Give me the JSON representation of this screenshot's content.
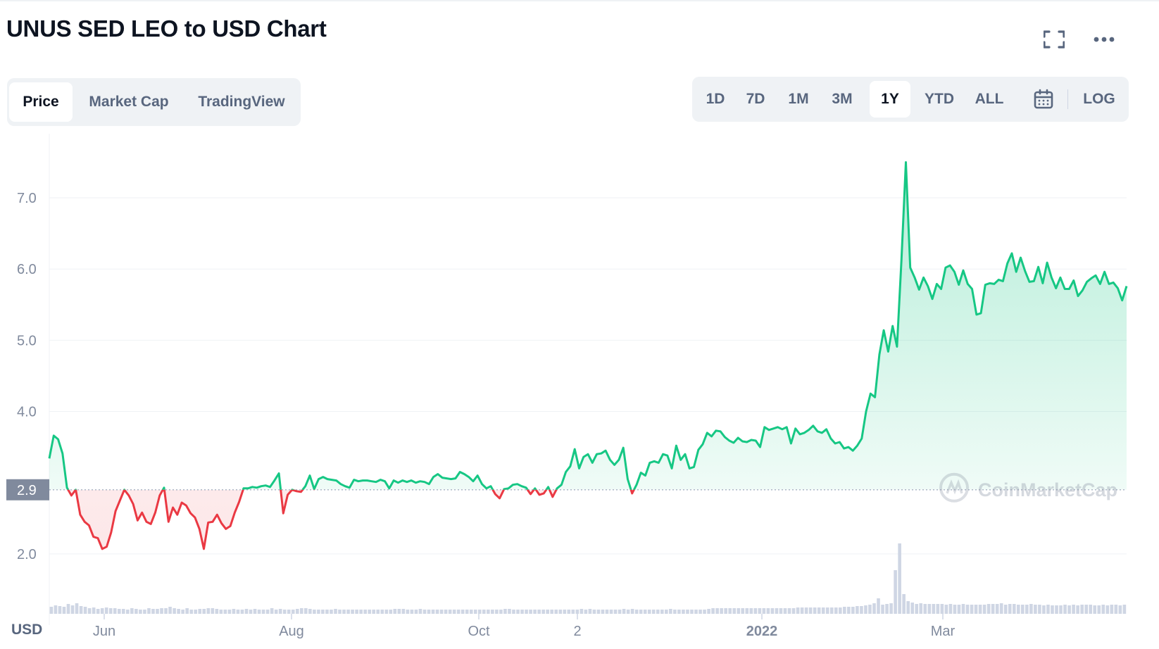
{
  "header": {
    "title": "UNUS SED LEO to USD Chart"
  },
  "icons": {
    "fullscreen": "fullscreen-icon",
    "more": "more-horizontal-icon",
    "calendar": "calendar-icon"
  },
  "tabs": [
    {
      "label": "Price",
      "active": true
    },
    {
      "label": "Market Cap",
      "active": false
    },
    {
      "label": "TradingView",
      "active": false
    }
  ],
  "ranges": [
    {
      "label": "1D",
      "active": false
    },
    {
      "label": "7D",
      "active": false
    },
    {
      "label": "1M",
      "active": false
    },
    {
      "label": "3M",
      "active": false
    },
    {
      "label": "1Y",
      "active": true
    },
    {
      "label": "YTD",
      "active": false
    },
    {
      "label": "ALL",
      "active": false
    }
  ],
  "log_label": "LOG",
  "currency_label": "USD",
  "watermark": "CoinMarketCap",
  "colors": {
    "up": "#16c784",
    "down": "#ea3943",
    "axis_text": "#808a9d",
    "grid": "#eff2f5",
    "badge": "#808a9d"
  },
  "chart_data": {
    "type": "line",
    "xlabel": "",
    "ylabel": "",
    "x_ticks": [
      "Jun",
      "Aug",
      "Oct",
      "2",
      "2022",
      "Mar"
    ],
    "y_ticks": [
      2.0,
      4.0,
      5.0,
      6.0,
      7.0
    ],
    "ylim": [
      1.0,
      7.9
    ],
    "current_price_label": "2.9",
    "baseline": 2.9,
    "grid": true,
    "series": [
      {
        "values": [
          3.34,
          3.66,
          3.61,
          3.41,
          2.93,
          2.82,
          2.9,
          2.55,
          2.45,
          2.4,
          2.24,
          2.22,
          2.07,
          2.1,
          2.3,
          2.6,
          2.75,
          2.9,
          2.82,
          2.7,
          2.47,
          2.58,
          2.45,
          2.42,
          2.58,
          2.82,
          2.93,
          2.45,
          2.65,
          2.55,
          2.72,
          2.68,
          2.57,
          2.51,
          2.35,
          2.07,
          2.44,
          2.45,
          2.55,
          2.43,
          2.35,
          2.39,
          2.58,
          2.73,
          2.92,
          2.92,
          2.94,
          2.93,
          2.95,
          2.96,
          2.94,
          3.03,
          3.13,
          2.57,
          2.83,
          2.9,
          2.88,
          2.87,
          2.95,
          3.1,
          2.91,
          3.05,
          3.08,
          3.05,
          3.04,
          3.03,
          2.98,
          2.95,
          2.93,
          3.04,
          3.02,
          3.03,
          3.03,
          3.02,
          3.01,
          3.04,
          3.02,
          2.92,
          3.03,
          3.0,
          3.03,
          3.01,
          3.03,
          3.0,
          3.02,
          3.01,
          2.98,
          3.08,
          3.12,
          3.07,
          3.06,
          3.05,
          3.06,
          3.15,
          3.12,
          3.08,
          3.02,
          3.1,
          2.98,
          2.92,
          2.95,
          2.84,
          2.78,
          2.91,
          2.92,
          2.97,
          2.98,
          2.95,
          2.93,
          2.84,
          2.92,
          2.83,
          2.85,
          2.94,
          2.8,
          2.92,
          2.97,
          3.15,
          3.23,
          3.47,
          3.2,
          3.36,
          3.4,
          3.28,
          3.4,
          3.41,
          3.45,
          3.32,
          3.25,
          3.32,
          3.49,
          3.05,
          2.85,
          2.97,
          3.14,
          3.1,
          3.28,
          3.3,
          3.28,
          3.4,
          3.38,
          3.2,
          3.52,
          3.32,
          3.4,
          3.2,
          3.22,
          3.46,
          3.54,
          3.7,
          3.65,
          3.73,
          3.72,
          3.64,
          3.59,
          3.56,
          3.63,
          3.58,
          3.57,
          3.6,
          3.59,
          3.5,
          3.78,
          3.74,
          3.76,
          3.78,
          3.75,
          3.78,
          3.55,
          3.76,
          3.68,
          3.7,
          3.74,
          3.8,
          3.72,
          3.7,
          3.75,
          3.62,
          3.55,
          3.57,
          3.48,
          3.5,
          3.45,
          3.52,
          3.62,
          4.0,
          4.25,
          4.2,
          4.8,
          5.14,
          4.84,
          5.2,
          4.91,
          6.12,
          7.5,
          6.02,
          5.88,
          5.71,
          5.88,
          5.76,
          5.58,
          5.79,
          5.72,
          6.02,
          6.05,
          5.96,
          5.78,
          5.98,
          5.79,
          5.72,
          5.36,
          5.38,
          5.78,
          5.8,
          5.79,
          5.85,
          5.83,
          6.08,
          6.22,
          5.96,
          6.16,
          5.97,
          5.82,
          5.83,
          6.03,
          5.8,
          6.09,
          5.88,
          5.73,
          5.88,
          5.72,
          5.72,
          5.84,
          5.62,
          5.7,
          5.82,
          5.87,
          5.91,
          5.79,
          5.96,
          5.79,
          5.81,
          5.73,
          5.56,
          5.76
        ]
      }
    ],
    "volume": [
      0.1,
      0.12,
      0.11,
      0.1,
      0.14,
      0.12,
      0.15,
      0.11,
      0.1,
      0.08,
      0.09,
      0.07,
      0.08,
      0.09,
      0.08,
      0.08,
      0.07,
      0.07,
      0.06,
      0.08,
      0.07,
      0.06,
      0.06,
      0.08,
      0.07,
      0.07,
      0.08,
      0.08,
      0.1,
      0.08,
      0.07,
      0.06,
      0.08,
      0.06,
      0.06,
      0.07,
      0.07,
      0.08,
      0.08,
      0.07,
      0.06,
      0.06,
      0.06,
      0.07,
      0.06,
      0.06,
      0.07,
      0.06,
      0.07,
      0.06,
      0.06,
      0.06,
      0.08,
      0.06,
      0.07,
      0.06,
      0.06,
      0.06,
      0.07,
      0.08,
      0.08,
      0.07,
      0.06,
      0.06,
      0.06,
      0.06,
      0.06,
      0.07,
      0.06,
      0.06,
      0.06,
      0.06,
      0.06,
      0.06,
      0.06,
      0.06,
      0.06,
      0.06,
      0.06,
      0.06,
      0.06,
      0.07,
      0.07,
      0.07,
      0.06,
      0.06,
      0.06,
      0.07,
      0.06,
      0.06,
      0.06,
      0.06,
      0.06,
      0.06,
      0.06,
      0.06,
      0.06,
      0.06,
      0.06,
      0.06,
      0.06,
      0.06,
      0.06,
      0.06,
      0.06,
      0.06,
      0.06,
      0.07,
      0.07,
      0.06,
      0.06,
      0.06,
      0.06,
      0.06,
      0.06,
      0.06,
      0.06,
      0.06,
      0.06,
      0.06,
      0.06,
      0.06,
      0.06,
      0.06,
      0.06,
      0.07,
      0.06,
      0.07,
      0.06,
      0.06,
      0.06,
      0.06,
      0.06,
      0.06,
      0.06,
      0.07,
      0.06,
      0.07,
      0.06,
      0.06,
      0.06,
      0.06,
      0.06,
      0.06,
      0.06,
      0.06,
      0.07,
      0.06,
      0.06,
      0.06,
      0.06,
      0.06,
      0.06,
      0.06,
      0.06,
      0.07,
      0.08,
      0.08,
      0.08,
      0.08,
      0.08,
      0.08,
      0.08,
      0.08,
      0.08,
      0.08,
      0.08,
      0.08,
      0.08,
      0.08,
      0.08,
      0.08,
      0.08,
      0.08,
      0.08,
      0.08,
      0.09,
      0.09,
      0.09,
      0.09,
      0.09,
      0.09,
      0.09,
      0.09,
      0.09,
      0.09,
      0.09,
      0.1,
      0.1,
      0.1,
      0.11,
      0.11,
      0.12,
      0.13,
      0.15,
      0.22,
      0.13,
      0.14,
      0.15,
      0.62,
      1.0,
      0.28,
      0.18,
      0.16,
      0.14,
      0.15,
      0.14,
      0.14,
      0.14,
      0.14,
      0.14,
      0.13,
      0.14,
      0.13,
      0.13,
      0.14,
      0.13,
      0.13,
      0.13,
      0.13,
      0.13,
      0.14,
      0.14,
      0.14,
      0.15,
      0.13,
      0.14,
      0.14,
      0.13,
      0.13,
      0.13,
      0.14,
      0.13,
      0.13,
      0.12,
      0.13,
      0.12,
      0.12,
      0.12,
      0.13,
      0.12,
      0.13,
      0.12,
      0.13,
      0.13,
      0.13,
      0.12,
      0.12,
      0.13,
      0.12,
      0.13,
      0.13,
      0.12,
      0.13
    ]
  }
}
